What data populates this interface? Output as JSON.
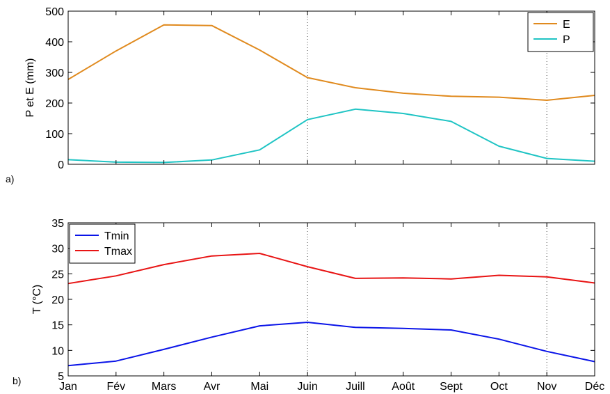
{
  "chart_data": [
    {
      "type": "line",
      "panel_label": "a)",
      "ylabel": "P et E (mm)",
      "ylim": [
        0,
        500
      ],
      "yticks": [
        0,
        100,
        200,
        300,
        400,
        500
      ],
      "categories": [
        "Jan",
        "Fév",
        "Mars",
        "Avr",
        "Mai",
        "Juin",
        "Juill",
        "Août",
        "Sept",
        "Oct",
        "Nov",
        "Déc"
      ],
      "vertical_lines_at": [
        "Juin",
        "Nov"
      ],
      "legend": "top-right",
      "series": [
        {
          "name": "E",
          "color": "#E08A1E",
          "values": [
            277,
            370,
            455,
            453,
            373,
            283,
            250,
            232,
            222,
            219,
            209,
            225
          ]
        },
        {
          "name": "P",
          "color": "#1FC4C4",
          "values": [
            15,
            7,
            6,
            14,
            47,
            146,
            180,
            166,
            140,
            59,
            19,
            10
          ]
        }
      ]
    },
    {
      "type": "line",
      "panel_label": "b)",
      "ylabel": "T (°C)",
      "ylim": [
        5,
        35
      ],
      "yticks": [
        5,
        10,
        15,
        20,
        25,
        30,
        35
      ],
      "categories": [
        "Jan",
        "Fév",
        "Mars",
        "Avr",
        "Mai",
        "Juin",
        "Juill",
        "Août",
        "Sept",
        "Oct",
        "Nov",
        "Déc"
      ],
      "vertical_lines_at": [
        "Juin",
        "Nov"
      ],
      "legend": "top-left",
      "series": [
        {
          "name": "Tmin",
          "color": "#0A14E8",
          "values": [
            7.0,
            7.9,
            10.2,
            12.6,
            14.8,
            15.5,
            14.5,
            14.3,
            14.0,
            12.2,
            9.8,
            7.8
          ]
        },
        {
          "name": "Tmax",
          "color": "#E81414",
          "values": [
            23.1,
            24.6,
            26.8,
            28.5,
            29.0,
            26.4,
            24.1,
            24.2,
            24.0,
            24.7,
            24.4,
            23.2
          ]
        }
      ]
    }
  ]
}
